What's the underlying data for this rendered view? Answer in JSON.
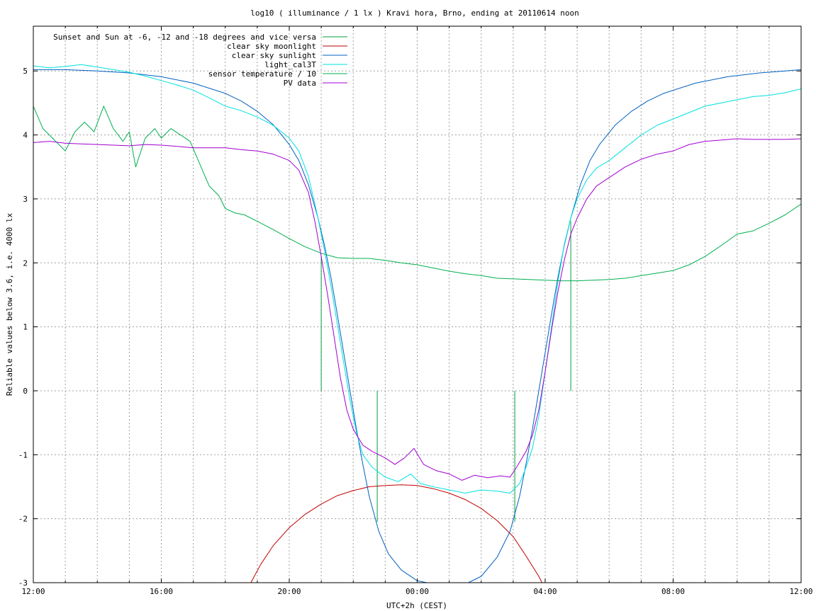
{
  "chart_data": {
    "type": "line",
    "title": "log10 ( illuminance / 1 lx ) Kravi hora, Brno, ending at 20110614 noon",
    "xlabel": "UTC+2h (CEST)",
    "ylabel": "Reliable values below 3.6, i.e. 4000 lx",
    "xlim_hours": [
      12,
      36
    ],
    "ylim": [
      -3,
      5.7
    ],
    "grid": true,
    "legend_position": "top-left",
    "x_ticks": [
      {
        "label": "12:00",
        "hour": 12
      },
      {
        "label": "16:00",
        "hour": 16
      },
      {
        "label": "20:00",
        "hour": 20
      },
      {
        "label": "00:00",
        "hour": 24
      },
      {
        "label": "04:00",
        "hour": 28
      },
      {
        "label": "08:00",
        "hour": 32
      },
      {
        "label": "12:00",
        "hour": 36
      }
    ],
    "y_ticks": [
      {
        "label": "5",
        "value": 5
      },
      {
        "label": "4",
        "value": 4
      },
      {
        "label": "3",
        "value": 3
      },
      {
        "label": "2",
        "value": 2
      },
      {
        "label": "1",
        "value": 1
      },
      {
        "label": "0",
        "value": 0
      },
      {
        "label": "-1",
        "value": -1
      },
      {
        "label": "-2",
        "value": -2
      },
      {
        "label": "-3",
        "value": -3
      }
    ],
    "series": [
      {
        "name": "Sunset and Sun at -6, -12 and -18 degrees and vice versa",
        "color": "#00a040",
        "kind": "impulses",
        "points": [
          [
            21.0,
            0,
            2.1
          ],
          [
            22.75,
            -2.05,
            0
          ],
          [
            27.05,
            -2.05,
            0
          ],
          [
            28.8,
            0,
            2.65
          ]
        ]
      },
      {
        "name": "clear sky moonlight",
        "color": "#c00000",
        "points": [
          [
            18.8,
            -3.0
          ],
          [
            19.1,
            -2.72
          ],
          [
            19.5,
            -2.42
          ],
          [
            20.0,
            -2.14
          ],
          [
            20.5,
            -1.93
          ],
          [
            21.0,
            -1.77
          ],
          [
            21.5,
            -1.64
          ],
          [
            22.0,
            -1.56
          ],
          [
            22.5,
            -1.5
          ],
          [
            23.0,
            -1.48
          ],
          [
            23.5,
            -1.47
          ],
          [
            24.0,
            -1.48
          ],
          [
            24.5,
            -1.53
          ],
          [
            25.0,
            -1.6
          ],
          [
            25.5,
            -1.7
          ],
          [
            26.0,
            -1.84
          ],
          [
            26.5,
            -2.03
          ],
          [
            27.0,
            -2.28
          ],
          [
            27.4,
            -2.58
          ],
          [
            27.8,
            -2.9
          ],
          [
            27.9,
            -3.0
          ]
        ]
      },
      {
        "name": "clear sky sunlight",
        "color": "#0060c0",
        "points": [
          [
            12.0,
            5.02
          ],
          [
            13.0,
            5.02
          ],
          [
            14.0,
            5.0
          ],
          [
            15.0,
            4.97
          ],
          [
            16.0,
            4.91
          ],
          [
            17.0,
            4.81
          ],
          [
            18.0,
            4.65
          ],
          [
            18.5,
            4.53
          ],
          [
            19.0,
            4.37
          ],
          [
            19.5,
            4.16
          ],
          [
            20.0,
            3.85
          ],
          [
            20.3,
            3.6
          ],
          [
            20.6,
            3.22
          ],
          [
            20.9,
            2.7
          ],
          [
            21.1,
            2.28
          ],
          [
            21.3,
            1.78
          ],
          [
            21.5,
            1.2
          ],
          [
            21.7,
            0.6
          ],
          [
            21.9,
            0.0
          ],
          [
            22.1,
            -0.6
          ],
          [
            22.3,
            -1.15
          ],
          [
            22.5,
            -1.65
          ],
          [
            22.8,
            -2.2
          ],
          [
            23.1,
            -2.55
          ],
          [
            23.5,
            -2.8
          ],
          [
            24.0,
            -2.97
          ],
          [
            24.3,
            -3.0
          ],
          [
            25.6,
            -3.0
          ],
          [
            26.0,
            -2.9
          ],
          [
            26.5,
            -2.6
          ],
          [
            26.9,
            -2.2
          ],
          [
            27.2,
            -1.65
          ],
          [
            27.4,
            -1.15
          ],
          [
            27.6,
            -0.6
          ],
          [
            27.8,
            0.0
          ],
          [
            28.0,
            0.6
          ],
          [
            28.2,
            1.2
          ],
          [
            28.4,
            1.78
          ],
          [
            28.6,
            2.28
          ],
          [
            28.8,
            2.7
          ],
          [
            29.1,
            3.22
          ],
          [
            29.4,
            3.6
          ],
          [
            29.7,
            3.85
          ],
          [
            30.2,
            4.16
          ],
          [
            30.7,
            4.37
          ],
          [
            31.2,
            4.53
          ],
          [
            31.7,
            4.65
          ],
          [
            32.7,
            4.81
          ],
          [
            33.7,
            4.91
          ],
          [
            34.7,
            4.97
          ],
          [
            35.5,
            5.0
          ],
          [
            36.0,
            5.02
          ]
        ]
      },
      {
        "name": "light_cal3T",
        "color": "#00e0e0",
        "points": [
          [
            12.0,
            5.08
          ],
          [
            12.5,
            5.05
          ],
          [
            13.0,
            5.07
          ],
          [
            13.5,
            5.1
          ],
          [
            14.0,
            5.06
          ],
          [
            14.5,
            5.02
          ],
          [
            15.0,
            4.98
          ],
          [
            15.5,
            4.92
          ],
          [
            16.0,
            4.85
          ],
          [
            16.5,
            4.78
          ],
          [
            17.0,
            4.7
          ],
          [
            17.5,
            4.58
          ],
          [
            18.0,
            4.45
          ],
          [
            18.5,
            4.38
          ],
          [
            19.0,
            4.28
          ],
          [
            19.5,
            4.15
          ],
          [
            20.0,
            3.95
          ],
          [
            20.3,
            3.75
          ],
          [
            20.6,
            3.35
          ],
          [
            20.9,
            2.7
          ],
          [
            21.1,
            2.2
          ],
          [
            21.3,
            1.65
          ],
          [
            21.5,
            1.05
          ],
          [
            21.7,
            0.45
          ],
          [
            21.9,
            -0.15
          ],
          [
            22.1,
            -0.65
          ],
          [
            22.3,
            -1.0
          ],
          [
            22.6,
            -1.2
          ],
          [
            23.0,
            -1.35
          ],
          [
            23.4,
            -1.42
          ],
          [
            23.8,
            -1.3
          ],
          [
            24.1,
            -1.45
          ],
          [
            24.5,
            -1.5
          ],
          [
            25.0,
            -1.55
          ],
          [
            25.5,
            -1.6
          ],
          [
            26.0,
            -1.55
          ],
          [
            26.5,
            -1.57
          ],
          [
            26.9,
            -1.6
          ],
          [
            27.2,
            -1.45
          ],
          [
            27.4,
            -1.2
          ],
          [
            27.6,
            -0.9
          ],
          [
            27.8,
            -0.4
          ],
          [
            28.0,
            0.3
          ],
          [
            28.2,
            1.0
          ],
          [
            28.4,
            1.7
          ],
          [
            28.6,
            2.3
          ],
          [
            28.8,
            2.7
          ],
          [
            29.0,
            3.0
          ],
          [
            29.3,
            3.3
          ],
          [
            29.6,
            3.48
          ],
          [
            30.0,
            3.6
          ],
          [
            30.5,
            3.8
          ],
          [
            31.0,
            4.0
          ],
          [
            31.5,
            4.15
          ],
          [
            32.0,
            4.25
          ],
          [
            32.5,
            4.35
          ],
          [
            33.0,
            4.45
          ],
          [
            33.5,
            4.5
          ],
          [
            34.0,
            4.55
          ],
          [
            34.5,
            4.6
          ],
          [
            35.0,
            4.62
          ],
          [
            35.5,
            4.66
          ],
          [
            36.0,
            4.72
          ]
        ]
      },
      {
        "name": "sensor temperature / 10",
        "color": "#00b050",
        "points": [
          [
            12.0,
            4.45
          ],
          [
            12.3,
            4.1
          ],
          [
            12.6,
            3.95
          ],
          [
            13.0,
            3.75
          ],
          [
            13.3,
            4.05
          ],
          [
            13.6,
            4.2
          ],
          [
            13.9,
            4.05
          ],
          [
            14.2,
            4.45
          ],
          [
            14.5,
            4.1
          ],
          [
            14.8,
            3.9
          ],
          [
            15.0,
            4.05
          ],
          [
            15.2,
            3.5
          ],
          [
            15.5,
            3.95
          ],
          [
            15.8,
            4.1
          ],
          [
            16.0,
            3.95
          ],
          [
            16.3,
            4.1
          ],
          [
            16.6,
            4.0
          ],
          [
            16.9,
            3.9
          ],
          [
            17.2,
            3.55
          ],
          [
            17.5,
            3.2
          ],
          [
            17.8,
            3.05
          ],
          [
            18.0,
            2.85
          ],
          [
            18.3,
            2.78
          ],
          [
            18.6,
            2.75
          ],
          [
            19.0,
            2.65
          ],
          [
            19.5,
            2.52
          ],
          [
            20.0,
            2.38
          ],
          [
            20.5,
            2.25
          ],
          [
            21.0,
            2.15
          ],
          [
            21.5,
            2.08
          ],
          [
            22.0,
            2.07
          ],
          [
            22.5,
            2.07
          ],
          [
            23.0,
            2.04
          ],
          [
            23.5,
            2.0
          ],
          [
            24.0,
            1.97
          ],
          [
            24.5,
            1.92
          ],
          [
            25.0,
            1.87
          ],
          [
            25.5,
            1.83
          ],
          [
            26.0,
            1.8
          ],
          [
            26.5,
            1.76
          ],
          [
            27.0,
            1.75
          ],
          [
            27.5,
            1.74
          ],
          [
            28.0,
            1.73
          ],
          [
            28.5,
            1.72
          ],
          [
            29.0,
            1.72
          ],
          [
            29.5,
            1.73
          ],
          [
            30.0,
            1.74
          ],
          [
            30.5,
            1.76
          ],
          [
            31.0,
            1.8
          ],
          [
            31.5,
            1.84
          ],
          [
            32.0,
            1.88
          ],
          [
            32.5,
            1.97
          ],
          [
            33.0,
            2.1
          ],
          [
            33.5,
            2.27
          ],
          [
            34.0,
            2.45
          ],
          [
            34.5,
            2.5
          ],
          [
            35.0,
            2.62
          ],
          [
            35.5,
            2.75
          ],
          [
            36.0,
            2.92
          ]
        ]
      },
      {
        "name": "PV data",
        "color": "#a000d0",
        "points": [
          [
            12.0,
            3.88
          ],
          [
            12.5,
            3.9
          ],
          [
            13.0,
            3.87
          ],
          [
            13.5,
            3.86
          ],
          [
            14.0,
            3.85
          ],
          [
            14.5,
            3.84
          ],
          [
            15.0,
            3.83
          ],
          [
            15.5,
            3.85
          ],
          [
            16.0,
            3.84
          ],
          [
            16.5,
            3.82
          ],
          [
            17.0,
            3.8
          ],
          [
            17.5,
            3.8
          ],
          [
            18.0,
            3.8
          ],
          [
            18.5,
            3.77
          ],
          [
            19.0,
            3.75
          ],
          [
            19.5,
            3.7
          ],
          [
            20.0,
            3.6
          ],
          [
            20.3,
            3.45
          ],
          [
            20.6,
            3.1
          ],
          [
            20.8,
            2.65
          ],
          [
            21.0,
            2.1
          ],
          [
            21.2,
            1.5
          ],
          [
            21.4,
            0.85
          ],
          [
            21.6,
            0.2
          ],
          [
            21.8,
            -0.3
          ],
          [
            22.0,
            -0.6
          ],
          [
            22.3,
            -0.85
          ],
          [
            22.6,
            -0.95
          ],
          [
            23.0,
            -1.05
          ],
          [
            23.3,
            -1.15
          ],
          [
            23.6,
            -1.05
          ],
          [
            23.9,
            -0.9
          ],
          [
            24.2,
            -1.15
          ],
          [
            24.6,
            -1.25
          ],
          [
            25.0,
            -1.3
          ],
          [
            25.4,
            -1.4
          ],
          [
            25.8,
            -1.32
          ],
          [
            26.2,
            -1.36
          ],
          [
            26.6,
            -1.33
          ],
          [
            26.9,
            -1.35
          ],
          [
            27.1,
            -1.2
          ],
          [
            27.4,
            -0.95
          ],
          [
            27.6,
            -0.7
          ],
          [
            27.8,
            -0.3
          ],
          [
            28.0,
            0.3
          ],
          [
            28.2,
            0.95
          ],
          [
            28.4,
            1.55
          ],
          [
            28.6,
            2.05
          ],
          [
            28.8,
            2.45
          ],
          [
            29.0,
            2.7
          ],
          [
            29.3,
            3.0
          ],
          [
            29.6,
            3.2
          ],
          [
            29.9,
            3.3
          ],
          [
            30.2,
            3.4
          ],
          [
            30.5,
            3.5
          ],
          [
            31.0,
            3.62
          ],
          [
            31.5,
            3.7
          ],
          [
            32.0,
            3.75
          ],
          [
            32.5,
            3.85
          ],
          [
            33.0,
            3.9
          ],
          [
            33.5,
            3.92
          ],
          [
            34.0,
            3.94
          ],
          [
            34.5,
            3.93
          ],
          [
            35.0,
            3.93
          ],
          [
            35.5,
            3.93
          ],
          [
            36.0,
            3.94
          ]
        ]
      }
    ]
  }
}
